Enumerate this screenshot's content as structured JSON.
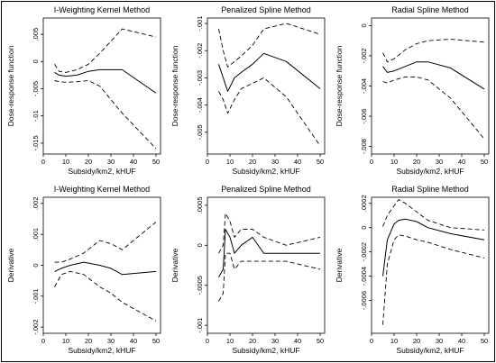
{
  "chart_data": [
    {
      "type": "line",
      "title": "I-Weighting Kernel Method",
      "xlabel": "Subsidy/km2, kHUF",
      "ylabel": "Dose-response function",
      "xlim": [
        0,
        52
      ],
      "ylim": [
        -0.017,
        0.008
      ],
      "xticks": [
        0,
        10,
        20,
        30,
        40,
        50
      ],
      "xtick_labels": [
        "0",
        "10",
        "20",
        "30",
        "40",
        "50"
      ],
      "yticks": [
        0.005,
        0,
        -0.005,
        -0.01,
        -0.015
      ],
      "ytick_labels": [
        ".005",
        "0",
        "-.005",
        "-.01",
        "-.015"
      ],
      "x": [
        5,
        7,
        10,
        15,
        20,
        25,
        35,
        50
      ],
      "series": [
        {
          "style": "solid",
          "values": [
            -0.002,
            -0.0025,
            -0.0027,
            -0.0025,
            -0.0018,
            -0.0015,
            -0.0015,
            -0.0058
          ]
        },
        {
          "style": "dashed",
          "values": [
            -0.0005,
            -0.0018,
            -0.002,
            -0.0015,
            -0.0005,
            0.0015,
            0.006,
            0.0045
          ]
        },
        {
          "style": "dashed",
          "values": [
            -0.0035,
            -0.0037,
            -0.0038,
            -0.0037,
            -0.0035,
            -0.0045,
            -0.0095,
            -0.016
          ]
        }
      ],
      "grid": false
    },
    {
      "type": "line",
      "title": "Penalized Spline Method",
      "xlabel": "Subsidy/km2, kHUF",
      "ylabel": "Dose-response function",
      "xlim": [
        0,
        52
      ],
      "ylim": [
        -0.0058,
        -0.0008
      ],
      "xticks": [
        0,
        10,
        20,
        30,
        40,
        50
      ],
      "xtick_labels": [
        "0",
        "10",
        "20",
        "30",
        "40",
        "50"
      ],
      "yticks": [
        -0.001,
        -0.002,
        -0.003,
        -0.004,
        -0.005
      ],
      "ytick_labels": [
        "-.001",
        "-.002",
        "-.003",
        "-.004",
        "-.005"
      ],
      "x": [
        5,
        7,
        9,
        12,
        15,
        20,
        25,
        35,
        50
      ],
      "series": [
        {
          "style": "solid",
          "values": [
            -0.0025,
            -0.003,
            -0.0035,
            -0.003,
            -0.0028,
            -0.0025,
            -0.0021,
            -0.0024,
            -0.0034
          ]
        },
        {
          "style": "dashed",
          "values": [
            -0.0012,
            -0.002,
            -0.0026,
            -0.0024,
            -0.0022,
            -0.0018,
            -0.0012,
            -0.001,
            -0.0014
          ]
        },
        {
          "style": "dashed",
          "values": [
            -0.0035,
            -0.0038,
            -0.0043,
            -0.0038,
            -0.0034,
            -0.0032,
            -0.003,
            -0.0037,
            -0.0055
          ]
        }
      ],
      "grid": false
    },
    {
      "type": "line",
      "title": "Radial Spline Method",
      "xlabel": "Subsidy/km2, kHUF",
      "ylabel": "Dose-response function",
      "xlim": [
        0,
        52
      ],
      "ylim": [
        -0.0085,
        0.0005
      ],
      "xticks": [
        0,
        10,
        20,
        30,
        40,
        50
      ],
      "xtick_labels": [
        "0",
        "10",
        "20",
        "30",
        "40",
        "50"
      ],
      "yticks": [
        0,
        -0.002,
        -0.004,
        -0.006,
        -0.008
      ],
      "ytick_labels": [
        "0",
        "-.002",
        "-.004",
        "-.006",
        "-.008"
      ],
      "x": [
        5,
        7,
        10,
        15,
        20,
        25,
        35,
        50
      ],
      "series": [
        {
          "style": "solid",
          "values": [
            -0.0027,
            -0.0031,
            -0.003,
            -0.0027,
            -0.0024,
            -0.0024,
            -0.0028,
            -0.0042
          ]
        },
        {
          "style": "dashed",
          "values": [
            -0.0018,
            -0.0024,
            -0.0022,
            -0.0016,
            -0.0012,
            -0.001,
            -0.0009,
            -0.0011
          ]
        },
        {
          "style": "dashed",
          "values": [
            -0.0037,
            -0.0038,
            -0.0036,
            -0.0034,
            -0.0034,
            -0.0036,
            -0.0048,
            -0.0075
          ]
        }
      ],
      "grid": false
    },
    {
      "type": "line",
      "title": "I-Weighting Kernel Method",
      "xlabel": "Subsidy/km2, kHUF",
      "ylabel": "Derivative",
      "xlim": [
        0,
        52
      ],
      "ylim": [
        -0.0022,
        0.0022
      ],
      "xticks": [
        0,
        10,
        20,
        30,
        40,
        50
      ],
      "xtick_labels": [
        "0",
        "10",
        "20",
        "30",
        "40",
        "50"
      ],
      "yticks": [
        0.002,
        0.001,
        0,
        -0.001,
        -0.002
      ],
      "ytick_labels": [
        ".002",
        ".001",
        "0",
        "-.001",
        "-.002"
      ],
      "x": [
        5,
        8,
        12,
        18,
        25,
        30,
        35,
        50
      ],
      "series": [
        {
          "style": "solid",
          "values": [
            -0.0002,
            -0.0001,
            0.0,
            0.0001,
            0.0,
            -0.0001,
            -0.0003,
            -0.0002
          ]
        },
        {
          "style": "dashed",
          "values": [
            0.0001,
            0.0001,
            0.0002,
            0.0004,
            0.0008,
            0.0007,
            0.0005,
            0.0014
          ]
        },
        {
          "style": "dashed",
          "values": [
            -0.0007,
            -0.0003,
            -0.0002,
            -0.0003,
            -0.0007,
            -0.0009,
            -0.0012,
            -0.0018
          ]
        }
      ],
      "grid": false
    },
    {
      "type": "line",
      "title": "Penalized Spline Method",
      "xlabel": "Subsidy/km2, kHUF",
      "ylabel": "Derivative",
      "xlim": [
        0,
        52
      ],
      "ylim": [
        -0.0011,
        0.0006
      ],
      "xticks": [
        0,
        10,
        20,
        30,
        40,
        50
      ],
      "xtick_labels": [
        "0",
        "10",
        "20",
        "30",
        "40",
        "50"
      ],
      "yticks": [
        0.0005,
        0,
        -0.0005,
        -0.001
      ],
      "ytick_labels": [
        ".0005",
        "0",
        "-.0005",
        "-.001"
      ],
      "x": [
        5,
        7,
        8,
        10,
        12,
        15,
        20,
        25,
        35,
        50
      ],
      "series": [
        {
          "style": "solid",
          "values": [
            -0.0004,
            -0.0003,
            0.0002,
            0.0001,
            -0.0001,
            0.0,
            0.0001,
            -0.0001,
            -0.0001,
            -0.0001
          ]
        },
        {
          "style": "dashed",
          "values": [
            -0.0001,
            0.0,
            0.0004,
            0.0003,
            0.0001,
            0.0002,
            0.0002,
            0.0001,
            0.0,
            0.0001
          ]
        },
        {
          "style": "dashed",
          "values": [
            -0.0007,
            -0.0006,
            -0.0001,
            -0.0001,
            -0.0003,
            -0.0002,
            -0.0002,
            -0.0002,
            -0.0002,
            -0.0003
          ]
        }
      ],
      "grid": false
    },
    {
      "type": "line",
      "title": "Radial Spline Method",
      "xlabel": "Subsidy/km2, kHUF",
      "ylabel": "Derivative",
      "xlim": [
        0,
        52
      ],
      "ylim": [
        -0.00087,
        0.00025
      ],
      "xticks": [
        0,
        10,
        20,
        30,
        40,
        50
      ],
      "xtick_labels": [
        "0",
        "10",
        "20",
        "30",
        "40",
        "50"
      ],
      "yticks": [
        0.0002,
        0,
        -0.0002,
        -0.0004,
        -0.0006
      ],
      "ytick_labels": [
        ".0002",
        "0",
        "-.0002",
        "-.0004",
        "-.0006"
      ],
      "x": [
        5,
        7,
        10,
        12,
        15,
        20,
        25,
        35,
        50
      ],
      "series": [
        {
          "style": "solid",
          "values": [
            -0.0004,
            -0.0001,
            3e-05,
            6e-05,
            7e-05,
            5e-05,
            0.0,
            -5e-05,
            -0.0001
          ]
        },
        {
          "style": "dashed",
          "values": [
            1e-05,
            0.0001,
            0.00018,
            0.00023,
            0.0002,
            0.00013,
            6e-05,
            0.0,
            -2e-05
          ]
        },
        {
          "style": "dashed",
          "values": [
            -0.0008,
            -0.0003,
            -0.0001,
            -6e-05,
            -7e-05,
            -0.0001,
            -0.00012,
            -0.00018,
            -0.00025
          ]
        }
      ],
      "grid": false
    }
  ]
}
